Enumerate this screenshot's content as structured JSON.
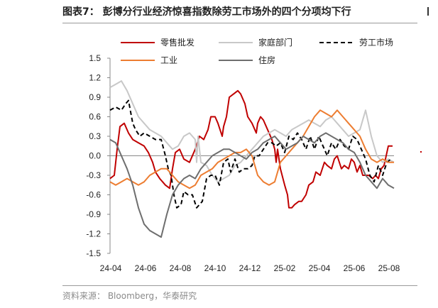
{
  "title": "图表7： 彭博分行业经济惊喜指数除劳工市场外的四个分项均下行",
  "source": "资料来源： Bloomberg，华泰研究",
  "chart_data": {
    "type": "line",
    "ylim": [
      -1.5,
      1.5
    ],
    "yticks": [
      "1.5",
      "1.2",
      "0.9",
      "0.6",
      "0.3",
      "0.0",
      "-0.3",
      "-0.6",
      "-0.9",
      "-1.2",
      "-1.5"
    ],
    "ytick_values": [
      1.5,
      1.2,
      0.9,
      0.6,
      0.3,
      0.0,
      -0.3,
      -0.6,
      -0.9,
      -1.2,
      -1.5
    ],
    "xticks": [
      "24-04",
      "24-06",
      "24-08",
      "24-10",
      "24-12",
      "25-02",
      "25-04",
      "25-06",
      "25-08"
    ],
    "x_range": [
      0,
      100
    ],
    "legend_position": "top",
    "series": [
      {
        "name": "零售批发",
        "color": "#c00000",
        "dash": "solid",
        "x": [
          0,
          1.5,
          2.5,
          3.5,
          5,
          6.5,
          8,
          10,
          12,
          13.5,
          15,
          16,
          17.5,
          18.5,
          19.5,
          21,
          22,
          23,
          24.5,
          26,
          28,
          30,
          31.5,
          33,
          34.5,
          35.5,
          37,
          38,
          39.5,
          40,
          41,
          42,
          43.5,
          45,
          46,
          47.5,
          48.5,
          50,
          51.5,
          52,
          53,
          54,
          55.5,
          57,
          58,
          58.5,
          59,
          60,
          61.5,
          62.5,
          63,
          64,
          65,
          66.5,
          67.5,
          69,
          70,
          71.5,
          72.5,
          74,
          75.5,
          76.5,
          78,
          79,
          80,
          81.5,
          82.5,
          84,
          85,
          86,
          87,
          88,
          89,
          90,
          91,
          92.5,
          93.5,
          94.5,
          95.5,
          96.5,
          98,
          99.5
        ],
        "y": [
          -0.35,
          -0.3,
          0.1,
          0.45,
          0.5,
          0.35,
          0.25,
          0.2,
          0.15,
          0.05,
          -0.1,
          -0.25,
          -0.35,
          -0.4,
          -0.45,
          -0.5,
          -0.2,
          0.05,
          0.1,
          -0.05,
          -0.1,
          0.1,
          0.3,
          0.25,
          0.4,
          0.6,
          0.6,
          0.5,
          0.3,
          0.45,
          0.6,
          0.9,
          0.95,
          1.0,
          0.95,
          0.8,
          0.6,
          0.5,
          0.35,
          0.5,
          0.6,
          0.55,
          0.4,
          0.25,
          0.1,
          -0.1,
          0.1,
          -0.2,
          -0.45,
          -0.6,
          -0.8,
          -0.8,
          -0.75,
          -0.7,
          -0.7,
          -0.6,
          -0.45,
          -0.4,
          -0.25,
          -0.3,
          -0.1,
          -0.15,
          -0.2,
          -0.05,
          0.0,
          -0.2,
          -0.15,
          -0.2,
          -0.05,
          -0.1,
          -0.25,
          -0.15,
          -0.3,
          -0.3,
          -0.3,
          -0.35,
          -0.3,
          -0.35,
          -0.2,
          -0.15,
          0.15,
          0.15
        ]
      },
      {
        "name": "家庭部门",
        "color": "#c8c8c8",
        "dash": "solid",
        "x": [
          0,
          2,
          4,
          6,
          8,
          10,
          12,
          14,
          16,
          18,
          20,
          22,
          24,
          26,
          28,
          29,
          30,
          30.5,
          31,
          32,
          34,
          36,
          38,
          40,
          42,
          44,
          46,
          48,
          50,
          52,
          54,
          56,
          58,
          60,
          62,
          64,
          66,
          68,
          70,
          72,
          74,
          76,
          78,
          80,
          82,
          84,
          86,
          88,
          90,
          92,
          94,
          96,
          98,
          100
        ],
        "y": [
          1.05,
          1.1,
          1.15,
          1.0,
          0.8,
          0.6,
          0.5,
          0.4,
          0.35,
          0.3,
          0.2,
          0.1,
          0.15,
          0.3,
          0.35,
          0.3,
          0.25,
          -0.1,
          0.3,
          -0.1,
          -0.15,
          -0.3,
          -0.4,
          -0.35,
          -0.3,
          -0.15,
          -0.1,
          0.0,
          0.1,
          0.2,
          0.3,
          0.35,
          0.4,
          0.35,
          0.3,
          0.4,
          0.45,
          0.5,
          0.55,
          0.5,
          0.45,
          0.55,
          0.6,
          0.5,
          0.4,
          0.3,
          0.35,
          0.4,
          0.7,
          0.3,
          0.0,
          -0.1,
          -0.05,
          -0.1
        ]
      },
      {
        "name": "劳工市场",
        "color": "#000000",
        "dash": "dashed",
        "x": [
          0,
          2,
          4,
          5.5,
          6.5,
          8,
          9,
          10.5,
          12,
          14,
          16,
          18,
          19.5,
          20.5,
          21.5,
          22.5,
          23.5,
          25,
          26,
          27.5,
          29,
          30.5,
          31.5,
          32.5,
          34,
          35.5,
          37,
          38.5,
          40,
          41.5,
          42.5,
          44,
          45.5,
          47,
          48.5,
          50,
          51,
          52.5,
          54,
          55.5,
          57,
          58.5,
          60,
          61.5,
          63,
          64.5,
          66,
          67.5,
          69,
          70.5,
          72,
          73.5,
          75,
          76.5,
          78,
          79.5,
          81,
          82.5,
          84,
          85.5,
          87,
          88.5,
          90,
          91.5,
          93,
          94.5,
          96,
          97.5,
          99
        ],
        "y": [
          0.7,
          0.75,
          0.7,
          0.8,
          0.85,
          0.5,
          0.4,
          0.3,
          0.35,
          0.3,
          0.25,
          0.25,
          0.0,
          -0.2,
          -0.3,
          -0.6,
          -0.8,
          -0.75,
          -0.55,
          -0.6,
          -0.6,
          -0.8,
          -0.75,
          -0.7,
          -0.35,
          -0.3,
          -0.3,
          -0.45,
          -0.1,
          -0.05,
          -0.25,
          -0.05,
          -0.25,
          -0.2,
          -0.2,
          -0.15,
          0.0,
          0.0,
          0.1,
          0.2,
          0.2,
          0.15,
          0.2,
          0.05,
          0.3,
          0.25,
          0.35,
          0.25,
          0.1,
          0.3,
          0.1,
          0.3,
          0.15,
          0.0,
          0.2,
          0.1,
          0.25,
          0.15,
          0.1,
          0.3,
          0.25,
          0.1,
          -0.05,
          -0.3,
          -0.4,
          -0.15,
          -0.3,
          -0.1,
          -0.05
        ]
      },
      {
        "name": "工业",
        "color": "#ed7d31",
        "dash": "solid",
        "x": [
          0,
          2,
          4,
          6,
          8,
          10,
          12,
          14,
          16,
          18,
          20,
          22,
          24,
          26,
          28,
          30,
          32,
          34,
          36,
          38,
          40,
          42,
          44,
          46,
          48,
          50,
          52,
          54,
          56,
          58,
          60,
          62,
          64,
          66,
          68,
          70,
          72,
          74,
          76,
          78,
          80,
          82,
          84,
          86,
          88,
          90,
          92,
          94,
          96,
          98,
          100
        ],
        "y": [
          -0.4,
          -0.45,
          -0.4,
          -0.35,
          -0.4,
          -0.45,
          -0.4,
          -0.3,
          -0.25,
          -0.2,
          -0.2,
          -0.3,
          -0.4,
          -0.45,
          -0.5,
          -0.45,
          -0.3,
          -0.25,
          -0.2,
          -0.1,
          -0.05,
          0.0,
          0.05,
          0.05,
          0.1,
          0.0,
          -0.3,
          -0.4,
          -0.45,
          -0.4,
          -0.1,
          0.0,
          0.1,
          0.2,
          0.3,
          0.45,
          0.6,
          0.7,
          0.65,
          0.6,
          0.7,
          0.6,
          0.5,
          0.4,
          0.3,
          0.1,
          -0.05,
          -0.1,
          -0.05,
          -0.1,
          -0.1
        ]
      },
      {
        "name": "住房",
        "color": "#6e6e6e",
        "dash": "solid",
        "x": [
          0,
          2,
          4,
          6,
          8,
          10,
          12,
          14,
          16,
          18,
          20,
          22,
          24,
          26,
          28,
          30,
          32,
          34,
          36,
          38,
          40,
          42,
          44,
          46,
          48,
          50,
          52,
          54,
          56,
          58,
          60,
          62,
          64,
          66,
          68,
          70,
          72,
          74,
          76,
          78,
          80,
          82,
          84,
          86,
          88,
          90,
          92,
          94,
          96,
          98,
          100
        ],
        "y": [
          0.25,
          0.2,
          0.0,
          -0.2,
          -0.45,
          -0.8,
          -1.05,
          -1.15,
          -1.2,
          -1.25,
          -0.9,
          -0.6,
          -0.45,
          -0.35,
          -0.3,
          -0.35,
          -0.2,
          -0.1,
          0.0,
          0.05,
          0.1,
          0.1,
          0.05,
          0.0,
          -0.05,
          0.05,
          0.1,
          0.2,
          0.25,
          0.3,
          0.2,
          0.1,
          0.15,
          0.2,
          0.3,
          0.25,
          0.2,
          0.3,
          0.35,
          0.3,
          0.25,
          0.2,
          0.1,
          0.05,
          -0.1,
          -0.3,
          -0.4,
          -0.5,
          -0.35,
          -0.45,
          -0.5
        ]
      }
    ]
  }
}
